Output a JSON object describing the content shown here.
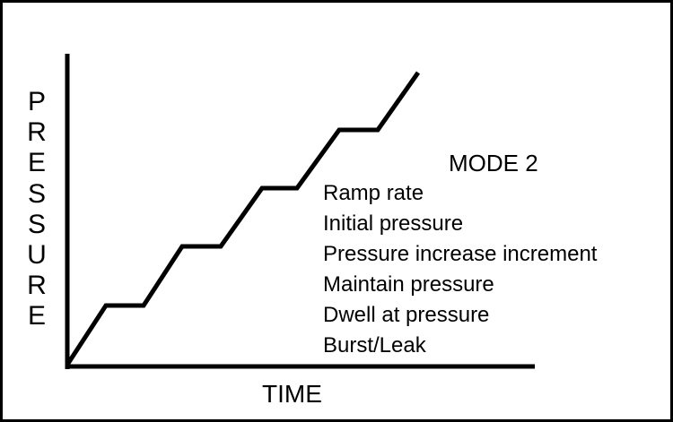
{
  "y_axis_label": "PRESSURE",
  "x_axis_label": "TIME",
  "mode_title": "MODE 2",
  "steps": [
    "Ramp rate",
    "Initial pressure",
    "Pressure increase increment",
    "Maintain pressure",
    "Dwell at pressure",
    "Burst/Leak"
  ],
  "colors": {
    "line": "#000000",
    "background": "#ffffff"
  }
}
